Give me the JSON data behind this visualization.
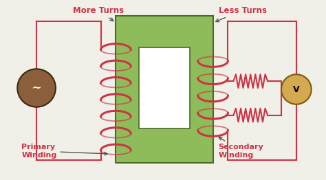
{
  "bg_color": "#f0efe8",
  "core_color": "#8fbc5a",
  "core_outline": "#4a6a25",
  "coil_color": "#cc3344",
  "wire_color": "#cc3344",
  "source_color": "#8B5E3C",
  "source_outline": "#3a2a10",
  "voltmeter_color": "#d4aa50",
  "voltmeter_outline": "#7a5a10",
  "label_color": "#cc3344",
  "arrow_color": "#555555",
  "text_more_turns": "More Turns",
  "text_less_turns": "Less Turns",
  "text_primary": "Primary\nWinding",
  "text_secondary": "Secondary\nWinding",
  "text_source": "~",
  "text_voltmeter": "V",
  "figsize": [
    4.74,
    2.62
  ],
  "dpi": 100
}
